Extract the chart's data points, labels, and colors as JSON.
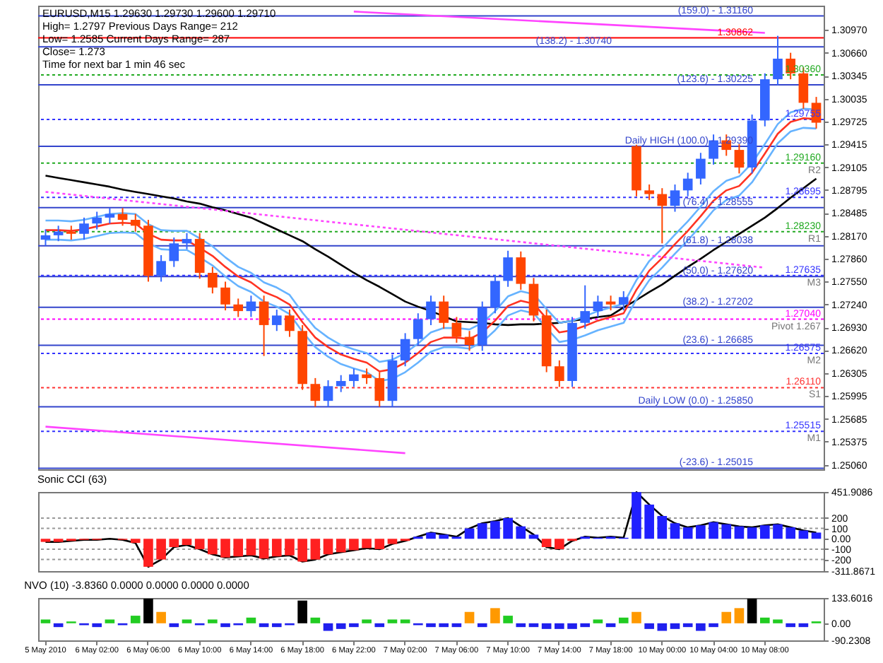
{
  "chart_data": [
    {
      "type": "candlestick",
      "categories": [
        "5 May 2010",
        null,
        null,
        null,
        "6 May 02:00",
        null,
        null,
        null,
        "6 May 06:00",
        null,
        null,
        null,
        "6 May 10:00",
        null,
        null,
        null,
        "6 May 14:00",
        null,
        null,
        null,
        "6 May 18:00",
        null,
        null,
        null,
        "6 May 22:00",
        null,
        null,
        null,
        "7 May 02:00",
        null,
        null,
        null,
        "7 May 06:00",
        null,
        null,
        null,
        "7 May 10:00",
        null,
        null,
        null,
        "7 May 14:00",
        null,
        null,
        null,
        "7 May 18:00",
        null,
        null,
        null,
        "10 May 00:00",
        null,
        null,
        null,
        "10 May 04:00",
        null,
        null,
        null,
        "10 May 08:00",
        null,
        null,
        null,
        null
      ],
      "ohlc": [
        [
          1.2812,
          1.2826,
          1.2804,
          1.2818
        ],
        [
          1.2818,
          1.2831,
          1.281,
          1.2823
        ],
        [
          1.2823,
          1.2831,
          1.2812,
          1.282
        ],
        [
          1.282,
          1.2842,
          1.2812,
          1.2834
        ],
        [
          1.2834,
          1.285,
          1.2826,
          1.2842
        ],
        [
          1.2842,
          1.2855,
          1.2834,
          1.2847
        ],
        [
          1.2847,
          1.2855,
          1.2831,
          1.2839
        ],
        [
          1.2839,
          1.2847,
          1.2823,
          1.2831
        ],
        [
          1.2831,
          1.2839,
          1.2755,
          1.2763
        ],
        [
          1.2763,
          1.2791,
          1.2755,
          1.2783
        ],
        [
          1.2783,
          1.2815,
          1.2775,
          1.2807
        ],
        [
          1.2807,
          1.2821,
          1.2799,
          1.2813
        ],
        [
          1.2813,
          1.2821,
          1.2759,
          1.2767
        ],
        [
          1.2767,
          1.2775,
          1.2739,
          1.2747
        ],
        [
          1.2747,
          1.2755,
          1.2716,
          1.2724
        ],
        [
          1.2724,
          1.2732,
          1.2707,
          1.2715
        ],
        [
          1.2715,
          1.2736,
          1.2707,
          1.2728
        ],
        [
          1.2728,
          1.2736,
          1.2654,
          1.2696
        ],
        [
          1.2696,
          1.2717,
          1.2688,
          1.2709
        ],
        [
          1.2709,
          1.2717,
          1.268,
          1.2688
        ],
        [
          1.2688,
          1.2696,
          1.2608,
          1.2616
        ],
        [
          1.2616,
          1.2624,
          1.2585,
          1.2593
        ],
        [
          1.2593,
          1.2621,
          1.2585,
          1.2613
        ],
        [
          1.2613,
          1.2628,
          1.2605,
          1.262
        ],
        [
          1.262,
          1.2637,
          1.2612,
          1.2629
        ],
        [
          1.2629,
          1.2637,
          1.2616,
          1.2624
        ],
        [
          1.2624,
          1.2632,
          1.2585,
          1.2593
        ],
        [
          1.2593,
          1.2656,
          1.2585,
          1.2648
        ],
        [
          1.2648,
          1.2685,
          1.264,
          1.2677
        ],
        [
          1.2677,
          1.2712,
          1.2669,
          1.2704
        ],
        [
          1.2704,
          1.2736,
          1.2696,
          1.2728
        ],
        [
          1.2728,
          1.2736,
          1.2691,
          1.2699
        ],
        [
          1.2699,
          1.2707,
          1.2672,
          1.268
        ],
        [
          1.268,
          1.2688,
          1.2661,
          1.2669
        ],
        [
          1.2669,
          1.2728,
          1.2661,
          1.272
        ],
        [
          1.272,
          1.2764,
          1.2712,
          1.2756
        ],
        [
          1.2756,
          1.2797,
          1.2748,
          1.2788
        ],
        [
          1.2788,
          1.2796,
          1.2744,
          1.2752
        ],
        [
          1.2752,
          1.276,
          1.2701,
          1.2709
        ],
        [
          1.2709,
          1.2717,
          1.2632,
          1.264
        ],
        [
          1.264,
          1.2648,
          1.2612,
          1.262
        ],
        [
          1.262,
          1.2707,
          1.2612,
          1.2699
        ],
        [
          1.2699,
          1.275,
          1.2691,
          1.2715
        ],
        [
          1.2715,
          1.2736,
          1.2707,
          1.2728
        ],
        [
          1.2728,
          1.2736,
          1.2716,
          1.2724
        ],
        [
          1.2724,
          1.2742,
          1.2716,
          1.2734
        ],
        [
          1.2939,
          1.2941,
          1.2871,
          1.2879
        ],
        [
          1.2879,
          1.2887,
          1.2866,
          1.2874
        ],
        [
          1.2874,
          1.2882,
          1.2807,
          1.2858
        ],
        [
          1.2858,
          1.2887,
          1.285,
          1.2879
        ],
        [
          1.2879,
          1.2903,
          1.2871,
          1.2895
        ],
        [
          1.2895,
          1.293,
          1.2887,
          1.2922
        ],
        [
          1.2922,
          1.2955,
          1.2914,
          1.2947
        ],
        [
          1.2947,
          1.2955,
          1.2926,
          1.2934
        ],
        [
          1.2934,
          1.2942,
          1.2902,
          1.291
        ],
        [
          1.291,
          1.2982,
          1.2902,
          1.2974
        ],
        [
          1.2974,
          1.3038,
          1.2966,
          1.303
        ],
        [
          1.303,
          1.3089,
          1.3022,
          1.3058
        ],
        [
          1.3058,
          1.3066,
          1.303,
          1.3038
        ],
        [
          1.3038,
          1.3046,
          1.299,
          1.2998
        ],
        [
          1.2998,
          1.3006,
          1.2963,
          1.2971
        ]
      ],
      "colors": [
        "#3366ff",
        "#3366ff",
        "#ff4500",
        "#3366ff",
        "#3366ff",
        "#3366ff",
        "#ff4500",
        "#ff4500",
        "#ff4500",
        "#3366ff",
        "#3366ff",
        "#3366ff",
        "#ff4500",
        "#ff4500",
        "#ff4500",
        "#ff4500",
        "#3366ff",
        "#ff4500",
        "#3366ff",
        "#ff4500",
        "#ff4500",
        "#ff4500",
        "#3366ff",
        "#3366ff",
        "#3366ff",
        "#ff4500",
        "#ff4500",
        "#3366ff",
        "#3366ff",
        "#3366ff",
        "#3366ff",
        "#ff4500",
        "#ff4500",
        "#ff4500",
        "#3366ff",
        "#3366ff",
        "#3366ff",
        "#ff4500",
        "#ff4500",
        "#ff4500",
        "#ff4500",
        "#3366ff",
        "#3366ff",
        "#3366ff",
        "#ff4500",
        "#3366ff",
        "#ff4500",
        "#ff4500",
        "#ff4500",
        "#3366ff",
        "#3366ff",
        "#3366ff",
        "#3366ff",
        "#ff4500",
        "#ff4500",
        "#3366ff",
        "#3366ff",
        "#3366ff",
        "#ff4500",
        "#ff4500",
        "#ff4500"
      ],
      "series": [
        {
          "type": "line",
          "color": "#000000",
          "values": [
            1.2899,
            1.2896,
            1.2893,
            1.289,
            1.2887,
            1.2884,
            1.288,
            1.2877,
            1.2874,
            1.2871,
            1.2868,
            1.2864,
            1.2861,
            1.2856,
            1.2852,
            1.2847,
            1.2842,
            1.2834,
            1.2826,
            1.2818,
            1.281,
            1.2799,
            1.2789,
            1.2778,
            1.2767,
            1.2757,
            1.2748,
            1.2738,
            1.2728,
            1.2721,
            1.2715,
            1.2708,
            1.2701,
            1.27,
            1.2699,
            1.2697,
            1.2696,
            1.2697,
            1.2697,
            1.2698,
            1.2699,
            1.2702,
            1.2704,
            1.2707,
            1.2709,
            1.272,
            1.273,
            1.2741,
            1.2751,
            1.2763,
            1.2775,
            1.2786,
            1.2798,
            1.2809,
            1.282,
            1.2831,
            1.2842,
            1.2855,
            1.2869,
            1.2882,
            1.2895
          ]
        },
        {
          "type": "line",
          "color": "#ff3322",
          "values": [
            1.2825,
            1.2825,
            1.2824,
            1.2826,
            1.283,
            1.2834,
            1.2835,
            1.2834,
            1.282,
            1.2812,
            1.2811,
            1.2811,
            1.2801,
            1.279,
            1.2775,
            1.2762,
            1.2754,
            1.2741,
            1.2734,
            1.2724,
            1.27,
            1.2679,
            1.2666,
            1.2656,
            1.265,
            1.2645,
            1.2633,
            1.2636,
            1.2645,
            1.2658,
            1.2673,
            1.2679,
            1.2679,
            1.2677,
            1.2686,
            1.2702,
            1.2722,
            1.2729,
            1.2725,
            1.2705,
            1.2686,
            1.2689,
            1.2695,
            1.2702,
            1.2707,
            1.2712,
            1.2744,
            1.277,
            1.2787,
            1.2806,
            1.2824,
            1.2844,
            1.2865,
            1.2879,
            1.2885,
            1.2903,
            1.2929,
            1.2956,
            1.2972,
            1.2977,
            1.2976
          ]
        },
        {
          "type": "line",
          "color": "#66b3ff",
          "values": [
            1.2838,
            1.2838,
            1.2837,
            1.2839,
            1.2843,
            1.2847,
            1.2848,
            1.2847,
            1.2833,
            1.2825,
            1.2824,
            1.2824,
            1.2814,
            1.2803,
            1.2788,
            1.2775,
            1.2767,
            1.2754,
            1.2747,
            1.2737,
            1.2713,
            1.2692,
            1.2679,
            1.2669,
            1.2663,
            1.2658,
            1.2646,
            1.2649,
            1.2658,
            1.2671,
            1.2686,
            1.2692,
            1.2692,
            1.269,
            1.2699,
            1.2715,
            1.2735,
            1.2742,
            1.2738,
            1.2718,
            1.2699,
            1.2702,
            1.2708,
            1.2715,
            1.272,
            1.2725,
            1.2757,
            1.2783,
            1.28,
            1.2819,
            1.2837,
            1.2857,
            1.2878,
            1.2892,
            1.2898,
            1.2916,
            1.2942,
            1.2969,
            1.2985,
            1.299,
            1.2989
          ]
        },
        {
          "type": "line",
          "color": "#66b3ff",
          "values": [
            1.2812,
            1.2812,
            1.2811,
            1.2813,
            1.2817,
            1.2821,
            1.2822,
            1.2821,
            1.2807,
            1.2799,
            1.2798,
            1.2798,
            1.2788,
            1.2777,
            1.2762,
            1.2749,
            1.2741,
            1.2728,
            1.2721,
            1.2711,
            1.2687,
            1.2666,
            1.2653,
            1.2643,
            1.2637,
            1.2632,
            1.262,
            1.2623,
            1.2632,
            1.2645,
            1.266,
            1.2666,
            1.2666,
            1.2664,
            1.2673,
            1.2689,
            1.2709,
            1.2716,
            1.2712,
            1.2692,
            1.2673,
            1.2676,
            1.2682,
            1.2689,
            1.2694,
            1.2699,
            1.2731,
            1.2757,
            1.2774,
            1.2793,
            1.2811,
            1.2831,
            1.2852,
            1.2866,
            1.2872,
            1.289,
            1.2916,
            1.2943,
            1.2959,
            1.2964,
            1.2963
          ]
        },
        {
          "type": "line",
          "color": "#ff44ff",
          "x": [
            "6 May 22:00",
            "10 May 08:00"
          ],
          "values": [
            1.3122,
            1.3093
          ]
        },
        {
          "type": "line",
          "color": "#ff44ff",
          "line_style": "dotted",
          "x": [
            "5 May 2010",
            "10 May 08:00"
          ],
          "values": [
            1.2877,
            1.2774
          ]
        },
        {
          "type": "line",
          "color": "#ff44ff",
          "x": [
            "5 May 2010",
            "7 May 02:00"
          ],
          "values": [
            1.2558,
            1.2522
          ]
        }
      ],
      "ylim": [
        1.25,
        1.313
      ],
      "yticks": [
        {
          "value": 1.3097,
          "label": "1.30970"
        },
        {
          "value": 1.3066,
          "label": "1.30660"
        },
        1.30345,
        1.30035,
        1.29725,
        1.29415,
        1.29105,
        1.28795,
        1.28485,
        {
          "value": 1.2817,
          "label": "1.28170"
        },
        {
          "value": 1.2786,
          "label": "1.27860"
        },
        {
          "value": 1.2755,
          "label": "1.27550"
        },
        {
          "value": 1.2724,
          "label": "1.27240"
        },
        {
          "value": 1.2693,
          "label": "1.26930"
        },
        {
          "value": 1.2662,
          "label": "1.26620"
        },
        1.26305,
        1.25995,
        1.25685,
        1.25375,
        {
          "value": 1.2506,
          "label": "1.25060"
        }
      ],
      "tick_labels": "y",
      "ref_lines": [
        {
          "axis": "y",
          "value": 1.30862,
          "label": "1.30862",
          "color": "#ff0000",
          "line_style": "solid"
        },
        {
          "axis": "y",
          "value": 1.3116,
          "color": "#3344cc",
          "line_style": "solid"
        },
        {
          "axis": "y",
          "value": 1.3074,
          "color": "#3344cc",
          "line_style": "solid"
        },
        {
          "axis": "y",
          "value": 1.30225,
          "color": "#3344cc",
          "line_style": "solid"
        },
        {
          "axis": "y",
          "value": 1.2939,
          "label": "Daily HIGH (100.0) - 1.29390",
          "color": "#3344cc",
          "line_style": "solid"
        },
        {
          "axis": "y",
          "value": 1.28555,
          "color": "#3344cc",
          "line_style": "solid"
        },
        {
          "axis": "y",
          "value": 1.28038,
          "color": "#3344cc",
          "line_style": "solid"
        },
        {
          "axis": "y",
          "value": 1.2762,
          "color": "#3344cc",
          "line_style": "solid"
        },
        {
          "axis": "y",
          "value": 1.27202,
          "color": "#3344cc",
          "line_style": "solid"
        },
        {
          "axis": "y",
          "value": 1.26685,
          "color": "#3344cc",
          "line_style": "solid"
        },
        {
          "axis": "y",
          "value": 1.2585,
          "label": "Daily LOW (0.0) - 1.25850",
          "color": "#3344cc",
          "line_style": "solid"
        },
        {
          "axis": "y",
          "value": 1.25015,
          "color": "#3344cc",
          "line_style": "solid"
        },
        {
          "axis": "y",
          "value": 1.3036,
          "label": "1.30360",
          "color": "#22aa22",
          "line_style": "dotted"
        },
        {
          "axis": "y",
          "value": 1.29755,
          "label": "1.29755",
          "color": "#3333ff",
          "line_style": "dotted"
        },
        {
          "axis": "y",
          "value": 1.2916,
          "label": "1.29160",
          "color": "#22aa22",
          "line_style": "dotted"
        },
        {
          "axis": "y",
          "value": 1.28695,
          "label": "1.28695",
          "color": "#3333ff",
          "line_style": "dotted"
        },
        {
          "axis": "y",
          "value": 1.2823,
          "label": "1.28230",
          "color": "#22aa22",
          "line_style": "dotted"
        },
        {
          "axis": "y",
          "value": 1.27635,
          "label": "1.27635",
          "color": "#3333ff",
          "line_style": "dotted"
        },
        {
          "axis": "y",
          "value": 1.2704,
          "label": "1.27040",
          "color": "#ff00ff",
          "line_style": "dotted"
        },
        {
          "axis": "y",
          "value": 1.26575,
          "label": "1.26575",
          "color": "#3333ff",
          "line_style": "dotted"
        },
        {
          "axis": "y",
          "value": 1.2611,
          "label": "1.26110",
          "color": "#ff3333",
          "line_style": "dotted"
        },
        {
          "axis": "y",
          "value": 1.25515,
          "label": "1.25515",
          "color": "#3333ff",
          "line_style": "dotted"
        }
      ],
      "annotations": [
        "EURUSD,M15 1.29630 1.29730 1.29600 1.29710",
        "High= 1.2797 Previous Days Range= 212",
        "Low= 1.2585 Current Days Range= 287",
        "Close= 1.273",
        "Time for next bar 1 min 46 sec",
        {
          "text": "(159.0) - 1.31160",
          "y": 1.3116
        },
        {
          "text": "(138.2) - 1.30740",
          "y": 1.3074
        },
        {
          "text": "(123.6) - 1.30225",
          "y": 1.30225
        },
        {
          "text": "(76.4) - 1.28555",
          "y": 1.28555
        },
        {
          "text": "(61.8) - 1.28038",
          "y": 1.28038
        },
        {
          "text": "(50.0) - 1.27620",
          "y": 1.2762
        },
        {
          "text": "(38.2) - 1.27202",
          "y": 1.27202
        },
        {
          "text": "(23.6) - 1.26685",
          "y": 1.26685
        },
        {
          "text": "(-23.6) - 1.25015",
          "y": 1.25015
        },
        {
          "text": "R2",
          "y": 1.2916
        },
        {
          "text": "R1",
          "y": 1.2823
        },
        {
          "text": "M3",
          "y": 1.27635
        },
        {
          "text": "Pivot 1.267",
          "y": 1.2704
        },
        {
          "text": "M2",
          "y": 1.26575
        },
        {
          "text": "S1",
          "y": 1.2611
        },
        {
          "text": "M1",
          "y": 1.25515
        }
      ]
    },
    {
      "type": "bar",
      "title": "Sonic CCI (63)",
      "categories": [
        "5 May 2010",
        null,
        null,
        null,
        "6 May 02:00",
        null,
        null,
        null,
        "6 May 06:00",
        null,
        null,
        null,
        "6 May 10:00",
        null,
        null,
        null,
        "6 May 14:00",
        null,
        null,
        null,
        "6 May 18:00",
        null,
        null,
        null,
        "6 May 22:00",
        null,
        null,
        null,
        "7 May 02:00",
        null,
        null,
        null,
        "7 May 06:00",
        null,
        null,
        null,
        "7 May 10:00",
        null,
        null,
        null,
        "7 May 14:00",
        null,
        null,
        null,
        "7 May 18:00",
        null,
        null,
        null,
        "10 May 00:00",
        null,
        null,
        null,
        "10 May 04:00",
        null,
        null,
        null,
        "10 May 08:00",
        null,
        null,
        null,
        null
      ],
      "series": [
        {
          "type": "bar",
          "colors": [
            "#ff2020",
            "#ff2020",
            "#ff2020",
            "#ff2020",
            "#ff2020",
            "#2020ff",
            "#ff2020",
            "#ff2020",
            "#ff2020",
            "#ff2020",
            "#ff2020",
            "#ff2020",
            "#ff2020",
            "#ff2020",
            "#ff2020",
            "#ff2020",
            "#ff2020",
            "#ff2020",
            "#ff2020",
            "#ff2020",
            "#ff2020",
            "#ff2020",
            "#ff2020",
            "#ff2020",
            "#ff2020",
            "#ff2020",
            "#ff2020",
            "#ff2020",
            "#ff2020",
            "#2020ff",
            "#2020ff",
            "#2020ff",
            "#2020ff",
            "#2020ff",
            "#2020ff",
            "#2020ff",
            "#2020ff",
            "#2020ff",
            "#2020ff",
            "#ff2020",
            "#ff2020",
            "#ff2020",
            "#2020ff",
            "#2020ff",
            "#2020ff",
            "#2020ff",
            "#2020ff",
            "#2020ff",
            "#2020ff",
            "#2020ff",
            "#2020ff",
            "#2020ff",
            "#2020ff",
            "#2020ff",
            "#2020ff",
            "#2020ff",
            "#2020ff",
            "#2020ff",
            "#2020ff",
            "#2020ff",
            "#2020ff"
          ],
          "values": [
            -30,
            -30,
            -20,
            -10,
            -10,
            0,
            -10,
            -40,
            -270,
            -200,
            -80,
            -60,
            -100,
            -150,
            -180,
            -170,
            -160,
            -190,
            -170,
            -160,
            -220,
            -200,
            -150,
            -130,
            -110,
            -90,
            -100,
            -50,
            -20,
            20,
            60,
            40,
            20,
            100,
            150,
            170,
            200,
            120,
            40,
            -80,
            -100,
            -20,
            20,
            10,
            20,
            10,
            450,
            330,
            220,
            150,
            110,
            130,
            160,
            140,
            120,
            110,
            130,
            140,
            110,
            80,
            60
          ]
        },
        {
          "type": "line",
          "color": "#000000",
          "values": [
            -30,
            -30,
            -20,
            -10,
            -10,
            0,
            -10,
            -40,
            -270,
            -200,
            -80,
            -60,
            -100,
            -150,
            -180,
            -170,
            -160,
            -190,
            -170,
            -160,
            -220,
            -200,
            -150,
            -130,
            -110,
            -90,
            -100,
            -50,
            -20,
            20,
            60,
            40,
            20,
            100,
            150,
            170,
            200,
            120,
            40,
            -80,
            -100,
            -20,
            20,
            10,
            20,
            10,
            450,
            330,
            220,
            150,
            110,
            130,
            160,
            140,
            120,
            110,
            130,
            140,
            110,
            80,
            60
          ]
        }
      ],
      "ylim": [
        -311.8671,
        451.9086
      ],
      "yticks": [
        451.9086,
        200,
        100,
        {
          "value": 0,
          "label": "0.00"
        },
        -100,
        -200,
        -311.8671
      ],
      "tick_labels": "y",
      "ref_lines": [
        {
          "axis": "y",
          "value": 200,
          "color": "#999999",
          "line_style": "dotted"
        },
        {
          "axis": "y",
          "value": 100,
          "color": "#999999",
          "line_style": "dotted"
        },
        {
          "axis": "y",
          "value": -100,
          "color": "#999999",
          "line_style": "dotted"
        },
        {
          "axis": "y",
          "value": -200,
          "color": "#999999",
          "line_style": "dotted"
        }
      ]
    },
    {
      "type": "bar",
      "title": "NVO (10) -3.8360 0.0000 0.0000 0.0000 0.0000",
      "categories": [
        "5 May 2010",
        null,
        null,
        null,
        "6 May 02:00",
        null,
        null,
        null,
        "6 May 06:00",
        null,
        null,
        null,
        "6 May 10:00",
        null,
        null,
        null,
        "6 May 14:00",
        null,
        null,
        null,
        "6 May 18:00",
        null,
        null,
        null,
        "6 May 22:00",
        null,
        null,
        null,
        "7 May 02:00",
        null,
        null,
        null,
        "7 May 06:00",
        null,
        null,
        null,
        "7 May 10:00",
        null,
        null,
        null,
        "7 May 14:00",
        null,
        null,
        null,
        "7 May 18:00",
        null,
        null,
        null,
        "10 May 00:00",
        null,
        null,
        null,
        "10 May 04:00",
        null,
        null,
        null,
        "10 May 08:00",
        null,
        null,
        null,
        null
      ],
      "values": [
        20,
        -20,
        10,
        -10,
        -20,
        20,
        -10,
        40,
        130,
        60,
        -20,
        20,
        -10,
        20,
        -20,
        -10,
        30,
        -20,
        -20,
        -10,
        120,
        30,
        -40,
        -30,
        -20,
        20,
        -20,
        20,
        20,
        -10,
        -20,
        -20,
        -20,
        60,
        -20,
        80,
        40,
        -20,
        -20,
        -30,
        -30,
        -30,
        -20,
        20,
        -20,
        30,
        60,
        -30,
        -40,
        -30,
        -20,
        -40,
        -20,
        60,
        80,
        130,
        30,
        20,
        -20,
        -20,
        10
      ],
      "colors": [
        "#22cc22",
        "#2020ee",
        "#22cc22",
        "#2020ee",
        "#2020ee",
        "#22cc22",
        "#2020ee",
        "#22cc22",
        "#000000",
        "#ff9900",
        "#2020ee",
        "#22cc22",
        "#2020ee",
        "#22cc22",
        "#2020ee",
        "#2020ee",
        "#22cc22",
        "#2020ee",
        "#2020ee",
        "#2020ee",
        "#000000",
        "#22cc22",
        "#2020ee",
        "#2020ee",
        "#2020ee",
        "#22cc22",
        "#2020ee",
        "#22cc22",
        "#22cc22",
        "#2020ee",
        "#2020ee",
        "#2020ee",
        "#2020ee",
        "#ff9900",
        "#2020ee",
        "#ff9900",
        "#22cc22",
        "#2020ee",
        "#2020ee",
        "#2020ee",
        "#2020ee",
        "#2020ee",
        "#2020ee",
        "#22cc22",
        "#2020ee",
        "#22cc22",
        "#ff9900",
        "#2020ee",
        "#2020ee",
        "#2020ee",
        "#2020ee",
        "#2020ee",
        "#2020ee",
        "#ff9900",
        "#ff9900",
        "#000000",
        "#22cc22",
        "#22cc22",
        "#2020ee",
        "#2020ee",
        "#22cc22"
      ],
      "ylim": [
        -90.2308,
        133.6016
      ],
      "yticks": [
        133.6016,
        {
          "value": 0,
          "label": "0.00"
        },
        -90.2308
      ]
    }
  ]
}
